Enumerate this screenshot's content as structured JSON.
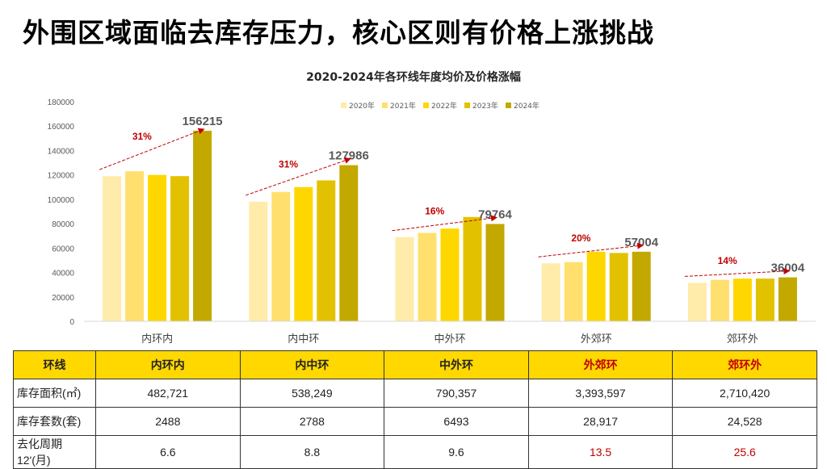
{
  "slide": {
    "title": "外围区域面临去库存压力，核心区则有价格上涨挑战"
  },
  "colors": {
    "series": [
      "#FFEBAA",
      "#FFE06E",
      "#FFD700",
      "#E2C200",
      "#C3A800"
    ],
    "arrow": "#C00000",
    "growth_label": "#C00000",
    "value_label": "#595959",
    "table_header": "#FFD800"
  },
  "chart_data": {
    "type": "bar",
    "title": "2020-2024年各环线年度均价及价格涨幅",
    "categories": [
      "内环内",
      "内中环",
      "中外环",
      "外郊环",
      "郊环外"
    ],
    "series": [
      {
        "name": "2020年",
        "values": [
          119000,
          98000,
          69000,
          47500,
          31500
        ]
      },
      {
        "name": "2021年",
        "values": [
          123000,
          106000,
          72500,
          48500,
          34000
        ]
      },
      {
        "name": "2022年",
        "values": [
          120000,
          110000,
          76000,
          57000,
          35000
        ]
      },
      {
        "name": "2023年",
        "values": [
          119000,
          115500,
          85500,
          56000,
          35000
        ]
      },
      {
        "name": "2024年",
        "values": [
          156215,
          127986,
          79764,
          57004,
          36004
        ]
      }
    ],
    "value_labels": [
      "156215",
      "127986",
      "79764",
      "57004",
      "36004"
    ],
    "growth_labels": [
      "31%",
      "31%",
      "16%",
      "20%",
      "14%"
    ],
    "ylim": [
      0,
      180000
    ],
    "yticks": [
      0,
      20000,
      40000,
      60000,
      80000,
      100000,
      120000,
      140000,
      160000,
      180000
    ],
    "grid": false,
    "legend_position": "top-right"
  },
  "table": {
    "header": [
      "环线",
      "内环内",
      "内中环",
      "中外环",
      "外郊环",
      "郊环外"
    ],
    "header_highlight": [
      false,
      false,
      false,
      false,
      true,
      true
    ],
    "rows": [
      {
        "label": "库存面积(㎡)",
        "values": [
          "482,721",
          "538,249",
          "790,357",
          "3,393,597",
          "2,710,420"
        ],
        "highlight": [
          false,
          false,
          false,
          false,
          false
        ]
      },
      {
        "label": "库存套数(套)",
        "values": [
          "2488",
          "2788",
          "6493",
          "28,917",
          "24,528"
        ],
        "highlight": [
          false,
          false,
          false,
          false,
          false
        ]
      },
      {
        "label": "去化周期12'(月)",
        "values": [
          "6.6",
          "8.8",
          "9.6",
          "13.5",
          "25.6"
        ],
        "highlight": [
          false,
          false,
          false,
          true,
          true
        ]
      }
    ]
  }
}
